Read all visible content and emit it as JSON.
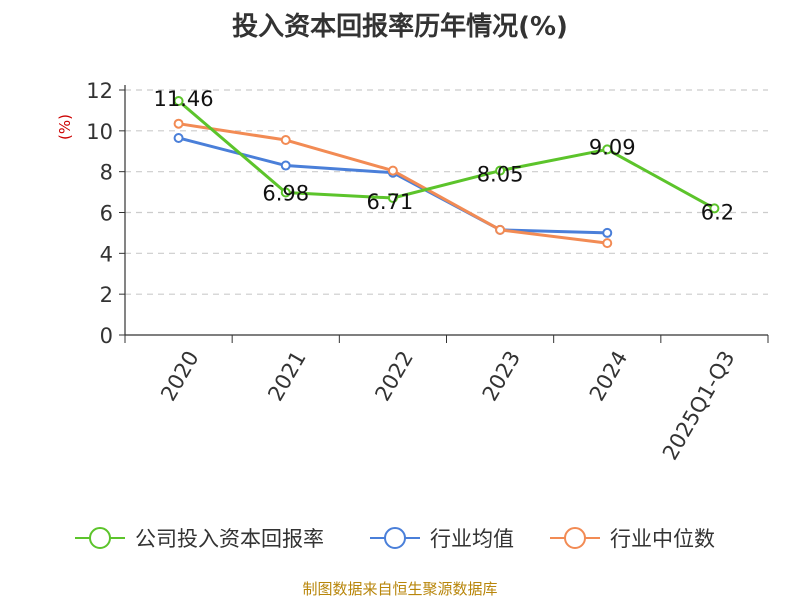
{
  "chart_data": {
    "type": "line",
    "title": "投入资本回报率历年情况(%)",
    "ylabel": "(%)",
    "xlabel": "",
    "categories": [
      "2020",
      "2021",
      "2022",
      "2023",
      "2024",
      "2025Q1-Q3"
    ],
    "ylim": [
      0,
      12
    ],
    "yticks": [
      "0",
      "2",
      "4",
      "6",
      "8",
      "10",
      "12"
    ],
    "grid": true,
    "legend_position": "bottom",
    "series": [
      {
        "name": "公司投入资本回报率",
        "color": "#5cc42b",
        "values": [
          11.46,
          6.98,
          6.71,
          8.05,
          9.09,
          6.2
        ],
        "labels": [
          "11.46",
          "6.98",
          "6.71",
          "8.05",
          "9.09",
          "6.2"
        ]
      },
      {
        "name": "行业均值",
        "color": "#4a7fd9",
        "values": [
          9.65,
          8.3,
          7.95,
          5.15,
          5.0,
          null
        ]
      },
      {
        "name": "行业中位数",
        "color": "#f28b54",
        "values": [
          10.35,
          9.55,
          8.05,
          5.15,
          4.5,
          null
        ]
      }
    ]
  },
  "source": "制图数据来自恒生聚源数据库"
}
